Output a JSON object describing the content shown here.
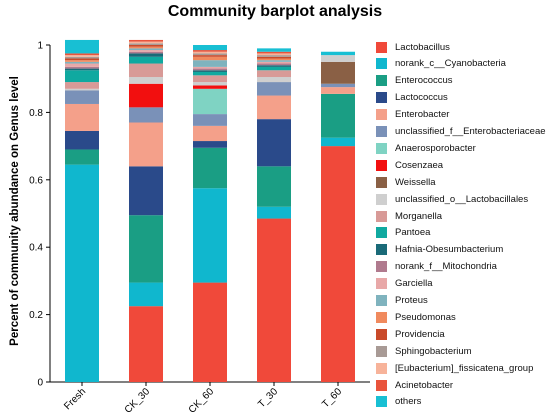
{
  "title": "Community barplot analysis",
  "chart_data": {
    "type": "bar",
    "stacked": true,
    "title": "Community barplot analysis",
    "xlabel": "",
    "ylabel": "Percent of community abundance on Genus level",
    "ylim": [
      0,
      1
    ],
    "yticks": [
      0,
      0.2,
      0.4,
      0.6,
      0.8,
      1
    ],
    "ytick_labels": [
      "0",
      "0.2",
      "0.4",
      "0.6",
      "0.8",
      "1"
    ],
    "categories": [
      "Fresh",
      "CK_30",
      "CK_60",
      "T_30",
      "T_60"
    ],
    "legend_position": "right",
    "grid": false,
    "series": [
      {
        "name": "Lactobacillus",
        "color": "#F0493A",
        "values": [
          0,
          0.225,
          0.295,
          0.485,
          0.7
        ]
      },
      {
        "name": "norank_c__Cyanobacteria",
        "color": "#10B7CE",
        "values": [
          0.645,
          0.07,
          0.28,
          0.035,
          0.025
        ]
      },
      {
        "name": "Enterococcus",
        "color": "#1A9E84",
        "values": [
          0.045,
          0.2,
          0.12,
          0.12,
          0.13
        ]
      },
      {
        "name": "Lactococcus",
        "color": "#2A4A8A",
        "values": [
          0.055,
          0.145,
          0.02,
          0.14,
          0
        ]
      },
      {
        "name": "Enterobacter",
        "color": "#F4A08A",
        "values": [
          0.08,
          0.13,
          0.045,
          0.07,
          0.02
        ]
      },
      {
        "name": "unclassified_f__Enterobacteriaceae",
        "color": "#7A91B8",
        "values": [
          0.04,
          0.045,
          0.035,
          0.04,
          0.01
        ]
      },
      {
        "name": "Anaerosporobacter",
        "color": "#7FD3C3",
        "values": [
          0,
          0,
          0.075,
          0,
          0
        ]
      },
      {
        "name": "Cosenzaea",
        "color": "#F20F0F",
        "values": [
          0,
          0.07,
          0.01,
          0,
          0
        ]
      },
      {
        "name": "Weissella",
        "color": "#8A6045",
        "values": [
          0,
          0,
          0,
          0,
          0.065
        ]
      },
      {
        "name": "unclassified_o__Lactobacillales",
        "color": "#CFCFCF",
        "values": [
          0.005,
          0.02,
          0.01,
          0.015,
          0.02
        ]
      },
      {
        "name": "Morganella",
        "color": "#D89A97",
        "values": [
          0.02,
          0.04,
          0.02,
          0.02,
          0
        ]
      },
      {
        "name": "Pantoea",
        "color": "#10A9A0",
        "values": [
          0.035,
          0.02,
          0.01,
          0.01,
          0
        ]
      },
      {
        "name": "Hafnia-Obesumbacterium",
        "color": "#1A6A78",
        "values": [
          0.005,
          0.01,
          0.005,
          0.005,
          0
        ]
      },
      {
        "name": "norank_f__Mitochondria",
        "color": "#B07A8E",
        "values": [
          0.005,
          0.005,
          0.005,
          0.005,
          0
        ]
      },
      {
        "name": "Garciella",
        "color": "#E8A8A8",
        "values": [
          0.01,
          0.005,
          0.005,
          0.005,
          0
        ]
      },
      {
        "name": "Proteus",
        "color": "#7FB3BE",
        "values": [
          0.005,
          0.005,
          0.02,
          0.005,
          0
        ]
      },
      {
        "name": "Pseudomonas",
        "color": "#F08A5E",
        "values": [
          0.005,
          0.005,
          0.01,
          0.005,
          0
        ]
      },
      {
        "name": "Providencia",
        "color": "#C94A2A",
        "values": [
          0.005,
          0.005,
          0.005,
          0.005,
          0
        ]
      },
      {
        "name": "Sphingobacterium",
        "color": "#A89A95",
        "values": [
          0.005,
          0.005,
          0.005,
          0.005,
          0
        ]
      },
      {
        "name": "[Eubacterium]_fissicatena_group",
        "color": "#F7B39A",
        "values": [
          0.005,
          0.005,
          0.005,
          0.005,
          0
        ]
      },
      {
        "name": "Acinetobacter",
        "color": "#E9543C",
        "values": [
          0.005,
          0.005,
          0.005,
          0.005,
          0
        ]
      },
      {
        "name": "others",
        "color": "#18BFD3",
        "values": [
          0.04,
          0,
          0.015,
          0.01,
          0.01
        ]
      }
    ]
  }
}
